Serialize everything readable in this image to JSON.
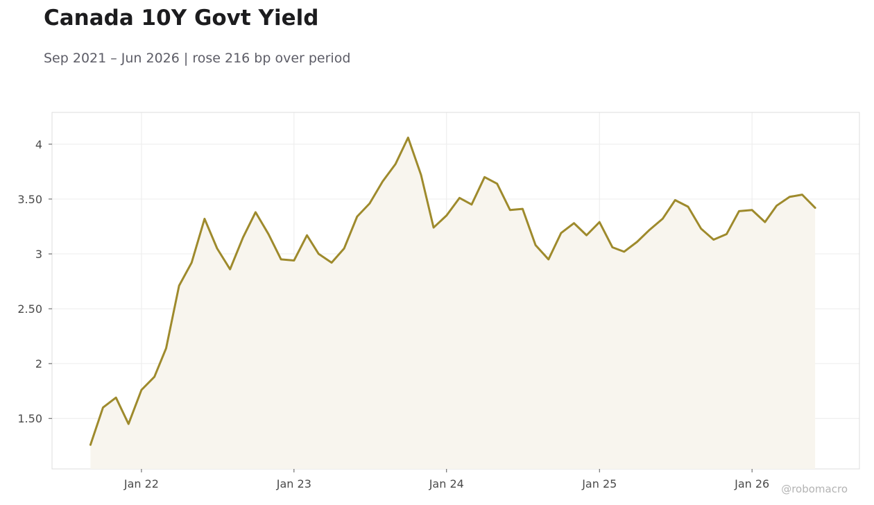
{
  "header": {
    "title": "Canada 10Y Govt Yield",
    "subtitle": "Sep 2021 – Jun 2026 | rose 216 bp over period"
  },
  "watermark": "@robomacro",
  "colors": {
    "line": "#9e8a2c",
    "fill": "#f8f5ee",
    "grid": "#ececec",
    "axis": "#dcdcdc"
  },
  "chart_data": {
    "type": "area",
    "title": "Canada 10Y Govt Yield",
    "xlabel": "",
    "ylabel": "",
    "ylim": [
      1.04,
      4.29
    ],
    "xlim": [
      "2021-06-01",
      "2026-09-15"
    ],
    "grid": true,
    "x_ticks": [
      {
        "date": "2022-01-01",
        "label": "Jan 22"
      },
      {
        "date": "2023-01-01",
        "label": "Jan 23"
      },
      {
        "date": "2024-01-01",
        "label": "Jan 24"
      },
      {
        "date": "2025-01-01",
        "label": "Jan 25"
      },
      {
        "date": "2026-01-01",
        "label": "Jan 26"
      }
    ],
    "y_ticks": [
      {
        "value": 1.5,
        "label": "1.50"
      },
      {
        "value": 2,
        "label": "2"
      },
      {
        "value": 2.5,
        "label": "2.50"
      },
      {
        "value": 3,
        "label": "3"
      },
      {
        "value": 3.5,
        "label": "3.50"
      },
      {
        "value": 4,
        "label": "4"
      }
    ],
    "x": [
      "2021-09-01",
      "2021-10-01",
      "2021-11-01",
      "2021-12-01",
      "2022-01-01",
      "2022-02-01",
      "2022-03-01",
      "2022-04-01",
      "2022-05-01",
      "2022-06-01",
      "2022-07-01",
      "2022-08-01",
      "2022-09-01",
      "2022-10-01",
      "2022-11-01",
      "2022-12-01",
      "2023-01-01",
      "2023-02-01",
      "2023-03-01",
      "2023-04-01",
      "2023-05-01",
      "2023-06-01",
      "2023-07-01",
      "2023-08-01",
      "2023-09-01",
      "2023-10-01",
      "2023-11-01",
      "2023-12-01",
      "2024-01-01",
      "2024-02-01",
      "2024-03-01",
      "2024-04-01",
      "2024-05-01",
      "2024-06-01",
      "2024-07-01",
      "2024-08-01",
      "2024-09-01",
      "2024-10-01",
      "2024-11-01",
      "2024-12-01",
      "2025-01-01",
      "2025-02-01",
      "2025-03-01",
      "2025-04-01",
      "2025-05-01",
      "2025-06-01",
      "2025-07-01",
      "2025-08-01",
      "2025-09-01",
      "2025-10-01",
      "2025-11-01",
      "2025-12-01",
      "2026-01-01",
      "2026-02-01",
      "2026-03-01",
      "2026-04-01",
      "2026-05-01",
      "2026-06-01"
    ],
    "series": [
      {
        "values": [
          1.26,
          1.6,
          1.69,
          1.45,
          1.76,
          1.88,
          2.14,
          2.71,
          2.92,
          3.32,
          3.05,
          2.86,
          3.15,
          3.38,
          3.18,
          2.95,
          2.94,
          3.17,
          3.0,
          2.92,
          3.05,
          3.34,
          3.46,
          3.66,
          3.82,
          4.06,
          3.72,
          3.24,
          3.35,
          3.51,
          3.45,
          3.7,
          3.64,
          3.4,
          3.41,
          3.08,
          2.95,
          3.19,
          3.28,
          3.17,
          3.29,
          3.06,
          3.02,
          3.11,
          3.22,
          3.32,
          3.49,
          3.43,
          3.23,
          3.13,
          3.18,
          3.39,
          3.4,
          3.29,
          3.44,
          3.52,
          3.54,
          3.42
        ]
      }
    ]
  }
}
